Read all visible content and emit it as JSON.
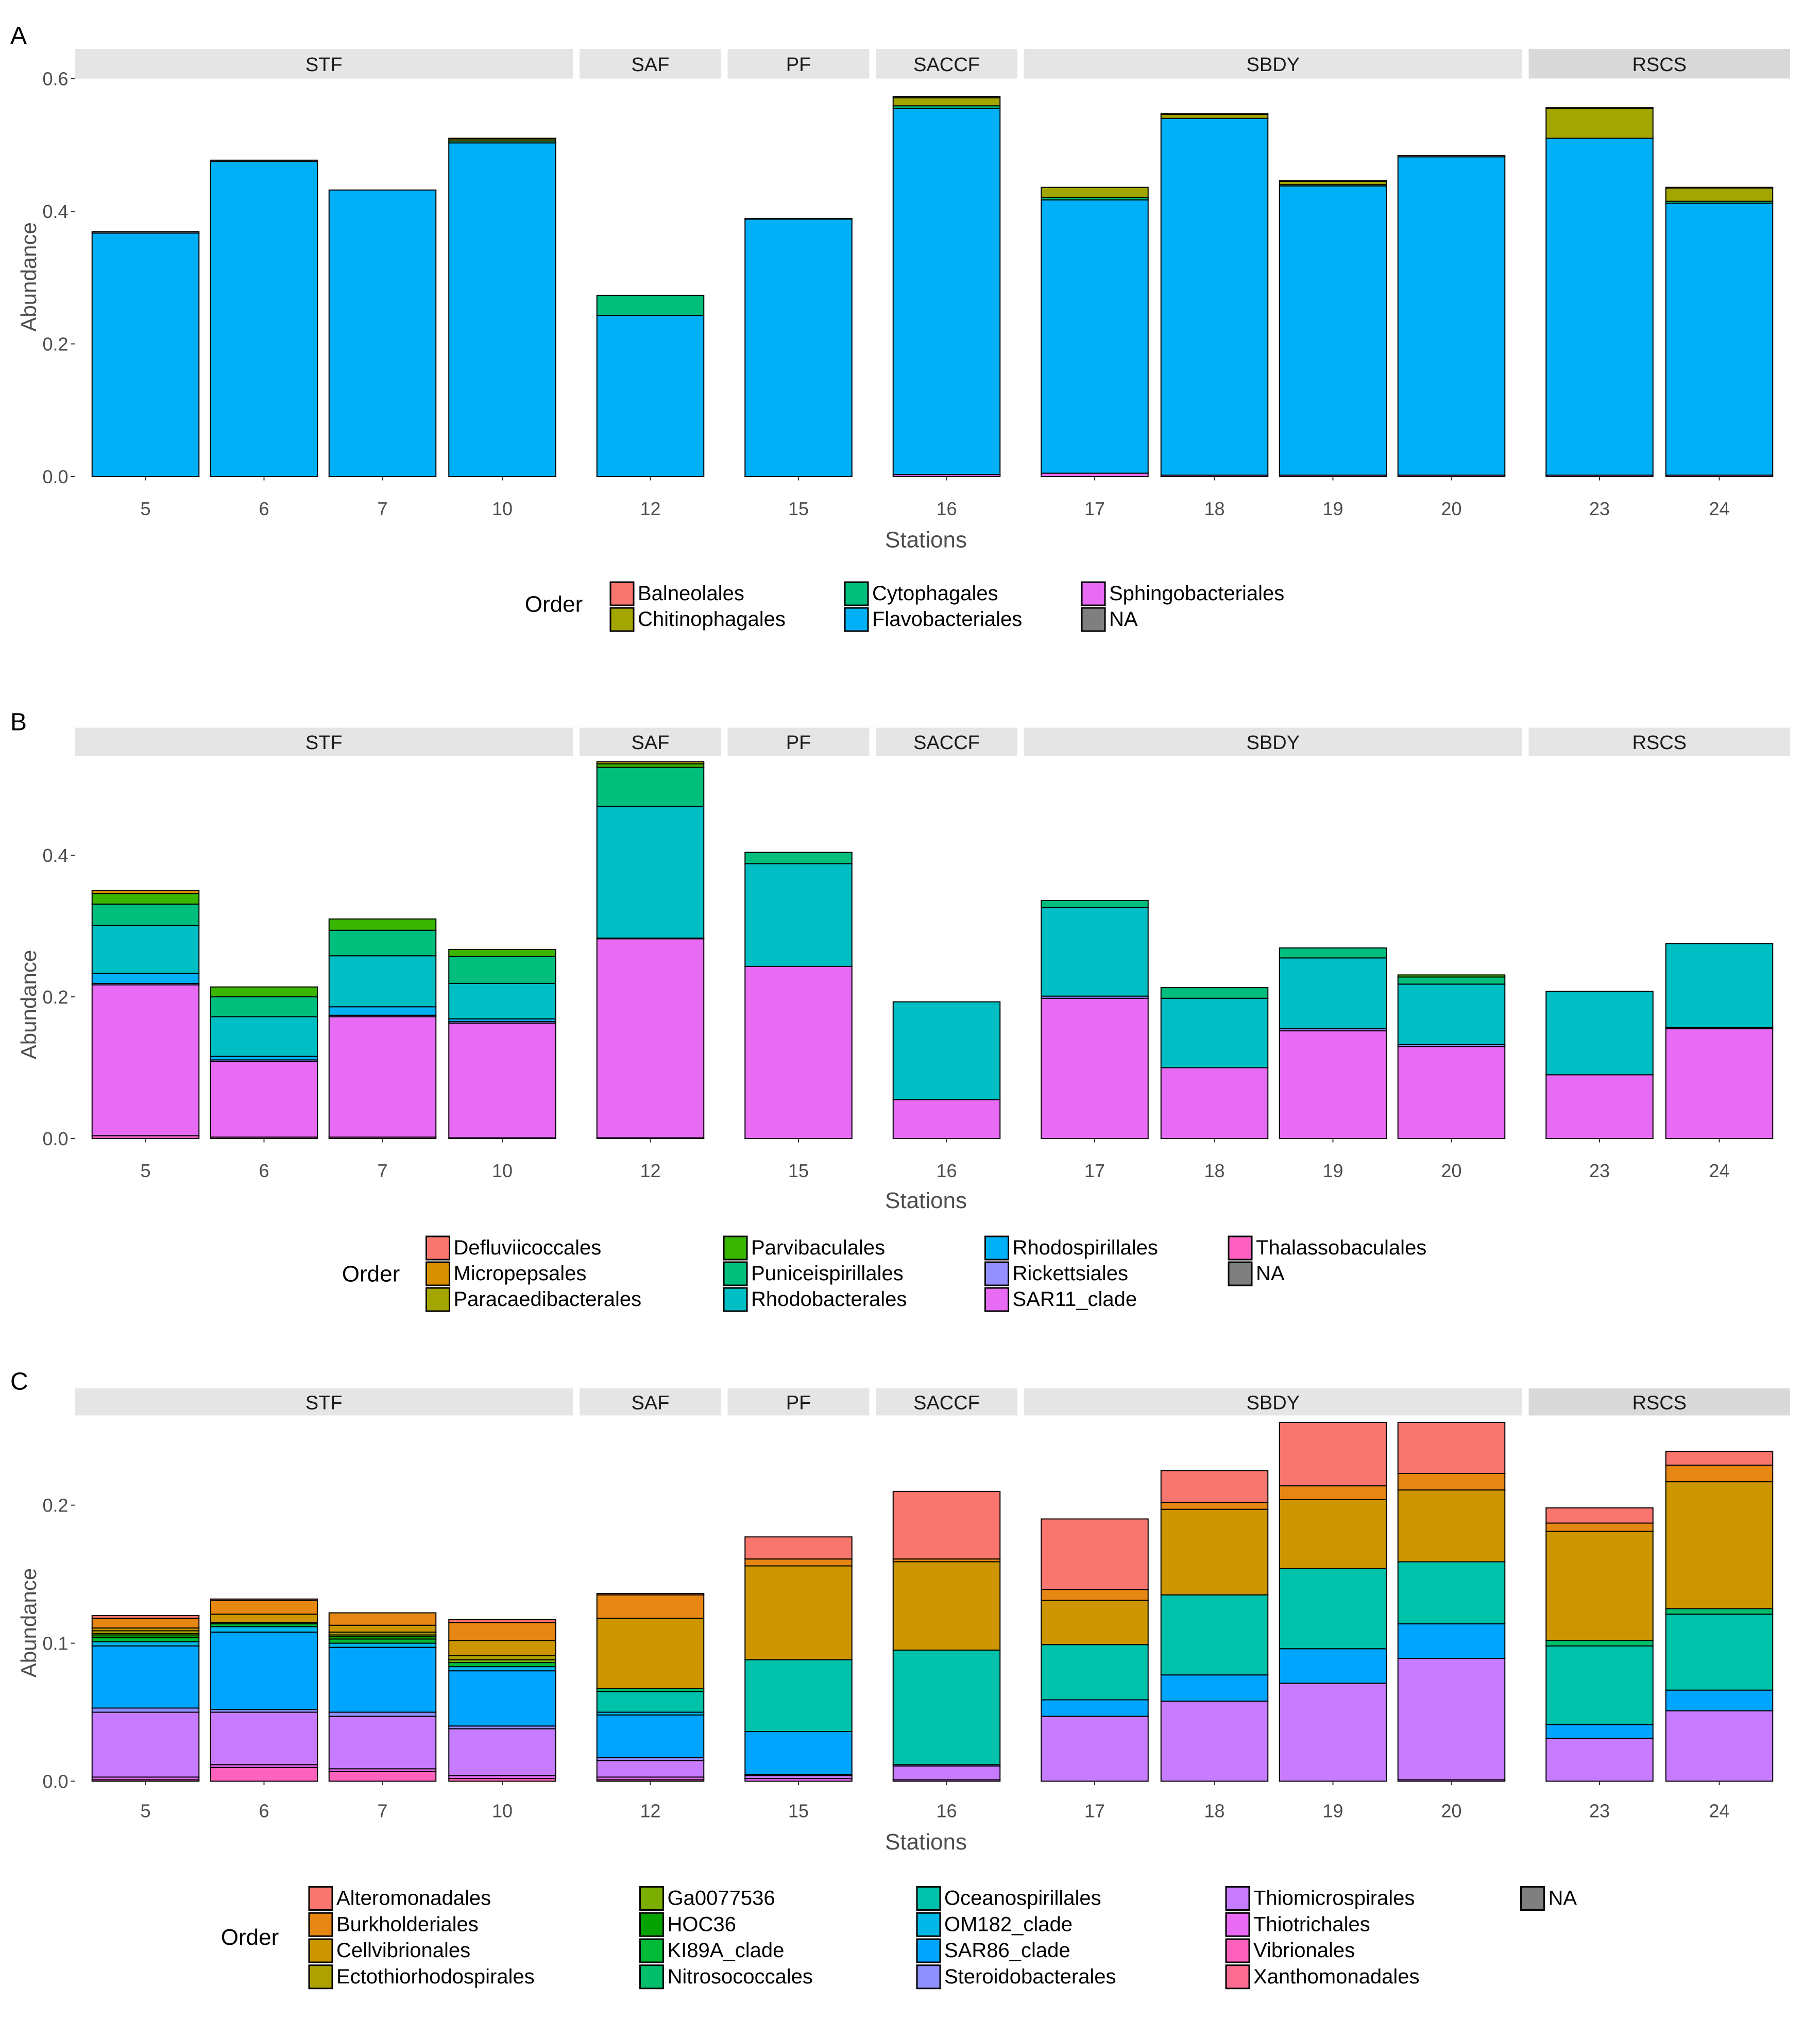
{
  "figure": {
    "panels": [
      {
        "id": "A",
        "label": "A"
      },
      {
        "id": "B",
        "label": "B"
      },
      {
        "id": "C",
        "label": "C"
      }
    ]
  },
  "chart_data": [
    {
      "panel": "A",
      "type": "bar",
      "stacked": true,
      "facets": [
        "STF",
        "SAF",
        "PF",
        "SACCF",
        "SBDY",
        "RSCS"
      ],
      "categories": [
        "5",
        "6",
        "7",
        "10",
        "12",
        "15",
        "16",
        "17",
        "18",
        "19",
        "20",
        "23",
        "24"
      ],
      "category_facet": [
        "STF",
        "STF",
        "STF",
        "STF",
        "SAF",
        "PF",
        "SACCF",
        "SBDY",
        "SBDY",
        "SBDY",
        "SBDY",
        "RSCS",
        "RSCS"
      ],
      "xlabel": "Stations",
      "ylabel": "Abundance",
      "ylim": [
        0,
        0.6
      ],
      "yticks": [
        "0.0",
        "0.2",
        "0.4",
        "0.6"
      ],
      "legend": {
        "title": "Order",
        "position": "bottom",
        "columns": 3
      },
      "series": [
        {
          "name": "Sphingobacteriales",
          "color": "#E76BF3",
          "values": [
            0,
            0,
            0,
            0,
            0,
            0,
            0.003,
            0.005,
            0.002,
            0.002,
            0.002,
            0.002,
            0.002
          ]
        },
        {
          "name": "Flavobacteriales",
          "color": "#00B0F6",
          "values": [
            0.367,
            0.475,
            0.432,
            0.503,
            0.243,
            0.388,
            0.552,
            0.412,
            0.538,
            0.436,
            0.48,
            0.508,
            0.41
          ]
        },
        {
          "name": "Cytophagales",
          "color": "#00BF7D",
          "values": [
            0,
            0,
            0,
            0.003,
            0.03,
            0,
            0.004,
            0.004,
            0,
            0.002,
            0,
            0,
            0.003
          ]
        },
        {
          "name": "Chitinophagales",
          "color": "#A3A500",
          "values": [
            0,
            0,
            0,
            0.003,
            0,
            0,
            0.012,
            0.015,
            0.006,
            0.005,
            0,
            0.045,
            0.02
          ]
        },
        {
          "name": "Balneolales",
          "color": "#F8766D",
          "values": [
            0,
            0,
            0,
            0,
            0,
            0,
            0,
            0,
            0,
            0,
            0,
            0,
            0
          ]
        },
        {
          "name": "NA",
          "color": "#7F7F7F",
          "values": [
            0.002,
            0.002,
            0,
            0.001,
            0,
            0.001,
            0.002,
            0,
            0.001,
            0.001,
            0.002,
            0.001,
            0.001
          ]
        }
      ],
      "legend_order": [
        "Balneolales",
        "Chitinophagales",
        "Cytophagales",
        "Flavobacteriales",
        "Sphingobacteriales",
        "NA"
      ]
    },
    {
      "panel": "B",
      "type": "bar",
      "stacked": true,
      "facets": [
        "STF",
        "SAF",
        "PF",
        "SACCF",
        "SBDY",
        "RSCS"
      ],
      "categories": [
        "5",
        "6",
        "7",
        "10",
        "12",
        "15",
        "16",
        "17",
        "18",
        "19",
        "20",
        "23",
        "24"
      ],
      "category_facet": [
        "STF",
        "STF",
        "STF",
        "STF",
        "SAF",
        "PF",
        "SACCF",
        "SBDY",
        "SBDY",
        "SBDY",
        "SBDY",
        "RSCS",
        "RSCS"
      ],
      "xlabel": "Stations",
      "ylabel": "Abundance",
      "ylim": [
        0,
        0.54
      ],
      "yticks": [
        "0.0",
        "0.2",
        "0.4"
      ],
      "ytick_values": [
        0,
        0.2,
        0.4
      ],
      "legend": {
        "title": "Order",
        "position": "bottom",
        "columns": 4
      },
      "series": [
        {
          "name": "Thalassobaculales",
          "color": "#FF61C3",
          "values": [
            0.004,
            0.002,
            0.002,
            0.001,
            0.001,
            0,
            0,
            0,
            0,
            0,
            0,
            0,
            0
          ]
        },
        {
          "name": "SAR11_clade",
          "color": "#E76BF3",
          "values": [
            0.213,
            0.107,
            0.17,
            0.162,
            0.281,
            0.243,
            0.055,
            0.198,
            0.1,
            0.152,
            0.13,
            0.09,
            0.155
          ]
        },
        {
          "name": "Rickettsiales",
          "color": "#9590FF",
          "values": [
            0.002,
            0.002,
            0.002,
            0.002,
            0.001,
            0,
            0,
            0.003,
            0,
            0.003,
            0.003,
            0,
            0.002
          ]
        },
        {
          "name": "Rhodospirillales",
          "color": "#00B0F6",
          "values": [
            0.014,
            0.005,
            0.012,
            0.004,
            0,
            0,
            0,
            0,
            0,
            0,
            0,
            0,
            0
          ]
        },
        {
          "name": "Rhodobacterales",
          "color": "#00BFC4",
          "values": [
            0.068,
            0.056,
            0.072,
            0.05,
            0.186,
            0.145,
            0.138,
            0.125,
            0.098,
            0.1,
            0.085,
            0.118,
            0.118
          ]
        },
        {
          "name": "Puniceispirillales",
          "color": "#00BF7D",
          "values": [
            0.03,
            0.028,
            0.036,
            0.038,
            0.055,
            0.016,
            0,
            0.01,
            0.015,
            0.014,
            0.01,
            0,
            0
          ]
        },
        {
          "name": "Parvibaculales",
          "color": "#39B600",
          "values": [
            0.015,
            0.014,
            0.016,
            0.01,
            0.005,
            0,
            0,
            0,
            0,
            0,
            0.003,
            0,
            0
          ]
        },
        {
          "name": "Paracaedibacterales",
          "color": "#A3A500",
          "values": [
            0,
            0,
            0,
            0,
            0.003,
            0,
            0,
            0,
            0,
            0,
            0,
            0,
            0
          ]
        },
        {
          "name": "Micropepsales",
          "color": "#D89000",
          "values": [
            0.004,
            0,
            0,
            0,
            0,
            0,
            0,
            0,
            0,
            0,
            0,
            0,
            0
          ]
        },
        {
          "name": "Defluviicoccales",
          "color": "#F8766D",
          "values": [
            0,
            0,
            0,
            0,
            0,
            0,
            0,
            0,
            0,
            0,
            0,
            0,
            0
          ]
        },
        {
          "name": "NA",
          "color": "#7F7F7F",
          "values": [
            0,
            0,
            0,
            0,
            0,
            0,
            0,
            0,
            0,
            0,
            0,
            0,
            0
          ]
        }
      ],
      "legend_order": [
        "Defluviicoccales",
        "Micropepsales",
        "Paracaedibacterales",
        "Parvibaculales",
        "Puniceispirillales",
        "Rhodobacterales",
        "Rhodospirillales",
        "Rickettsiales",
        "SAR11_clade",
        "Thalassobaculales",
        "NA"
      ]
    },
    {
      "panel": "C",
      "type": "bar",
      "stacked": true,
      "facets": [
        "STF",
        "SAF",
        "PF",
        "SACCF",
        "SBDY",
        "RSCS"
      ],
      "categories": [
        "5",
        "6",
        "7",
        "10",
        "12",
        "15",
        "16",
        "17",
        "18",
        "19",
        "20",
        "23",
        "24"
      ],
      "category_facet": [
        "STF",
        "STF",
        "STF",
        "STF",
        "SAF",
        "PF",
        "SACCF",
        "SBDY",
        "SBDY",
        "SBDY",
        "SBDY",
        "RSCS",
        "RSCS"
      ],
      "xlabel": "Stations",
      "ylabel": "Abundance",
      "ylim": [
        0,
        0.265
      ],
      "yticks": [
        "0.0",
        "0.1",
        "0.2"
      ],
      "ytick_values": [
        0,
        0.1,
        0.2
      ],
      "legend": {
        "title": "Order",
        "position": "bottom",
        "columns": 5
      },
      "series": [
        {
          "name": "Vibrionales",
          "color": "#FF62BC",
          "values": [
            0.001,
            0.01,
            0.007,
            0.002,
            0.001,
            0,
            0,
            0,
            0,
            0,
            0,
            0,
            0
          ]
        },
        {
          "name": "Thiotrichales",
          "color": "#E76BF3",
          "values": [
            0.002,
            0.002,
            0.002,
            0.002,
            0.002,
            0.002,
            0.001,
            0,
            0,
            0,
            0.001,
            0,
            0
          ]
        },
        {
          "name": "Thiomicrospirales",
          "color": "#C77CFF",
          "values": [
            0.047,
            0.038,
            0.038,
            0.034,
            0.012,
            0.002,
            0.01,
            0.047,
            0.058,
            0.071,
            0.088,
            0.031,
            0.051
          ]
        },
        {
          "name": "Steroidobacterales",
          "color": "#8F91FF",
          "values": [
            0.003,
            0.002,
            0.003,
            0.002,
            0.002,
            0.001,
            0.001,
            0,
            0,
            0,
            0,
            0,
            0
          ]
        },
        {
          "name": "SAR86_clade",
          "color": "#00A5FF",
          "values": [
            0.045,
            0.056,
            0.047,
            0.04,
            0.031,
            0.031,
            0,
            0.012,
            0.019,
            0.025,
            0.025,
            0.01,
            0.015
          ]
        },
        {
          "name": "OM182_clade",
          "color": "#00B7E8",
          "values": [
            0.003,
            0.004,
            0.003,
            0.003,
            0.002,
            0,
            0,
            0,
            0,
            0,
            0,
            0,
            0
          ]
        },
        {
          "name": "Oceanospirillales",
          "color": "#00C1AA",
          "values": [
            0,
            0,
            0,
            0,
            0.015,
            0.052,
            0.083,
            0.04,
            0.058,
            0.058,
            0.045,
            0.057,
            0.055
          ]
        },
        {
          "name": "Nitrosococcales",
          "color": "#00BE6C",
          "values": [
            0,
            0,
            0,
            0,
            0.002,
            0,
            0,
            0,
            0,
            0,
            0,
            0.004,
            0.004
          ]
        },
        {
          "name": "KI89A_clade",
          "color": "#00BA38",
          "values": [
            0.003,
            0.002,
            0.003,
            0.003,
            0,
            0,
            0,
            0,
            0,
            0,
            0,
            0,
            0
          ]
        },
        {
          "name": "HOC36",
          "color": "#06A200",
          "values": [
            0.002,
            0.001,
            0.002,
            0,
            0,
            0,
            0,
            0,
            0,
            0,
            0,
            0,
            0
          ]
        },
        {
          "name": "Ga0077536",
          "color": "#7CAE00",
          "values": [
            0.001,
            0,
            0.001,
            0.002,
            0,
            0,
            0,
            0,
            0,
            0,
            0,
            0,
            0
          ]
        },
        {
          "name": "Ectothiorhodospirales",
          "color": "#AEA200",
          "values": [
            0.002,
            0,
            0.002,
            0.003,
            0,
            0,
            0,
            0,
            0,
            0,
            0,
            0,
            0
          ]
        },
        {
          "name": "Cellvibrionales",
          "color": "#CD9600",
          "values": [
            0.002,
            0.006,
            0.005,
            0.011,
            0.051,
            0.068,
            0.064,
            0.032,
            0.062,
            0.05,
            0.052,
            0.079,
            0.092
          ]
        },
        {
          "name": "Burkholderiales",
          "color": "#E68613",
          "values": [
            0.007,
            0.01,
            0.009,
            0.013,
            0.017,
            0.005,
            0.002,
            0.008,
            0.005,
            0.01,
            0.012,
            0.006,
            0.012
          ]
        },
        {
          "name": "Alteromonadales",
          "color": "#F8766D",
          "values": [
            0.002,
            0.001,
            0,
            0.002,
            0.001,
            0.016,
            0.049,
            0.051,
            0.023,
            0.046,
            0.037,
            0.011,
            0.01
          ]
        },
        {
          "name": "Xanthomonadales",
          "color": "#FF6C91",
          "values": [
            0,
            0,
            0,
            0,
            0,
            0,
            0,
            0,
            0,
            0,
            0,
            0,
            0
          ]
        },
        {
          "name": "NA",
          "color": "#7F7F7F",
          "values": [
            0,
            0,
            0,
            0,
            0,
            0,
            0,
            0,
            0,
            0,
            0,
            0,
            0
          ]
        }
      ],
      "legend_order": [
        "Alteromonadales",
        "Burkholderiales",
        "Cellvibrionales",
        "Ectothiorhodospirales",
        "Ga0077536",
        "HOC36",
        "KI89A_clade",
        "Nitrosococcales",
        "Oceanospirillales",
        "OM182_clade",
        "SAR86_clade",
        "Steroidobacterales",
        "Thiomicrospirales",
        "Thiotrichales",
        "Vibrionales",
        "Xanthomonadales",
        "NA"
      ]
    }
  ]
}
